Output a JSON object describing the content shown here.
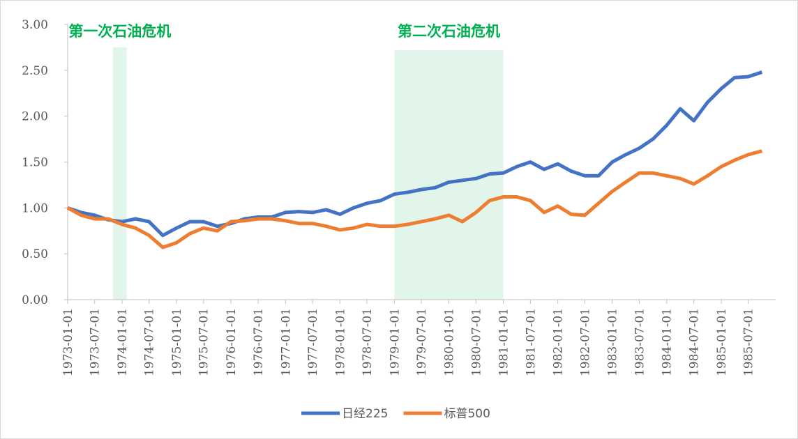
{
  "chart_data": {
    "type": "line",
    "x": [
      "1973-01-01",
      "1973-04-01",
      "1973-07-01",
      "1973-10-01",
      "1974-01-01",
      "1974-04-01",
      "1974-07-01",
      "1974-10-01",
      "1975-01-01",
      "1975-04-01",
      "1975-07-01",
      "1975-10-01",
      "1976-01-01",
      "1976-04-01",
      "1976-07-01",
      "1976-10-01",
      "1977-01-01",
      "1977-04-01",
      "1977-07-01",
      "1977-10-01",
      "1978-01-01",
      "1978-04-01",
      "1978-07-01",
      "1978-10-01",
      "1979-01-01",
      "1979-04-01",
      "1979-07-01",
      "1979-10-01",
      "1980-01-01",
      "1980-04-01",
      "1980-07-01",
      "1980-10-01",
      "1981-01-01",
      "1981-04-01",
      "1981-07-01",
      "1981-10-01",
      "1982-01-01",
      "1982-04-01",
      "1982-07-01",
      "1982-10-01",
      "1983-01-01",
      "1983-04-01",
      "1983-07-01",
      "1983-10-01",
      "1984-01-01",
      "1984-04-01",
      "1984-07-01",
      "1984-10-01",
      "1985-01-01",
      "1985-04-01",
      "1985-07-01",
      "1985-10-01"
    ],
    "series": [
      {
        "name": "日经225",
        "color": "#4472c4",
        "values": [
          1.0,
          0.95,
          0.92,
          0.87,
          0.85,
          0.88,
          0.85,
          0.7,
          0.78,
          0.85,
          0.85,
          0.8,
          0.83,
          0.88,
          0.9,
          0.9,
          0.95,
          0.96,
          0.95,
          0.98,
          0.93,
          1.0,
          1.05,
          1.08,
          1.15,
          1.17,
          1.2,
          1.22,
          1.28,
          1.3,
          1.32,
          1.37,
          1.38,
          1.45,
          1.5,
          1.42,
          1.48,
          1.4,
          1.35,
          1.35,
          1.5,
          1.58,
          1.65,
          1.75,
          1.9,
          2.08,
          1.95,
          2.15,
          2.3,
          2.42,
          2.43,
          2.48
        ]
      },
      {
        "name": "标普500",
        "color": "#ed7d31",
        "values": [
          1.0,
          0.92,
          0.88,
          0.88,
          0.82,
          0.78,
          0.7,
          0.57,
          0.62,
          0.72,
          0.78,
          0.75,
          0.85,
          0.86,
          0.88,
          0.88,
          0.86,
          0.83,
          0.83,
          0.8,
          0.76,
          0.78,
          0.82,
          0.8,
          0.8,
          0.82,
          0.85,
          0.88,
          0.92,
          0.85,
          0.95,
          1.08,
          1.12,
          1.12,
          1.08,
          0.95,
          1.02,
          0.93,
          0.92,
          1.05,
          1.18,
          1.28,
          1.38,
          1.38,
          1.35,
          1.32,
          1.26,
          1.35,
          1.45,
          1.52,
          1.58,
          1.62
        ]
      }
    ],
    "xlim": [
      "1973-01-01",
      "1986-01-01"
    ],
    "xticks": [
      "1973-01-01",
      "1973-07-01",
      "1974-01-01",
      "1974-07-01",
      "1975-01-01",
      "1975-07-01",
      "1976-01-01",
      "1976-07-01",
      "1977-01-01",
      "1977-07-01",
      "1978-01-01",
      "1978-07-01",
      "1979-01-01",
      "1979-07-01",
      "1980-01-01",
      "1980-07-01",
      "1981-01-01",
      "1981-07-01",
      "1982-01-01",
      "1982-07-01",
      "1983-01-01",
      "1983-07-01",
      "1984-01-01",
      "1984-07-01",
      "1985-01-01",
      "1985-07-01"
    ],
    "ylim": [
      0,
      3
    ],
    "yticks": [
      {
        "value": 0,
        "label": "0.00"
      },
      {
        "value": 0.5,
        "label": "0.50"
      },
      {
        "value": 1,
        "label": "1.00"
      },
      {
        "value": 1.5,
        "label": "1.50"
      },
      {
        "value": 2,
        "label": "2.00"
      },
      {
        "value": 2.5,
        "label": "2.50"
      },
      {
        "value": 3,
        "label": "3.00"
      }
    ],
    "shaded": [
      {
        "label": "第一次石油危机",
        "start": "1973-11-01",
        "end": "1974-02-01",
        "top": 2.75
      },
      {
        "label": "第二次石油危机",
        "start": "1979-01-01",
        "end": "1981-01-01",
        "top": 2.72
      }
    ],
    "shade_color": "#e2f5ea",
    "annotation_color": "#00b050",
    "legend": "bottom"
  }
}
